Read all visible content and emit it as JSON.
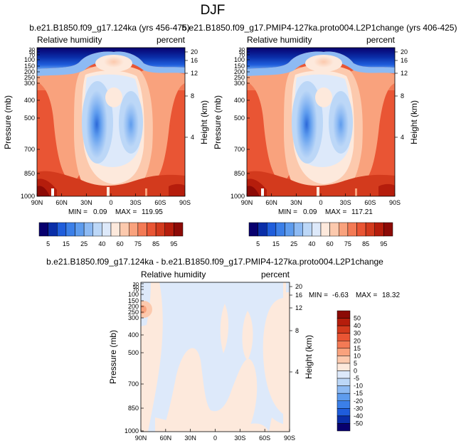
{
  "title": "DJF",
  "chart_data": [
    {
      "type": "heatmap",
      "title": "b.e21.B1850.f09_g17.124ka (yrs 456-475)",
      "left_label": "Relative humidity",
      "right_label": "percent",
      "ylabel": "Pressure (mb)",
      "ylabel_right": "Height (km)",
      "xlabel": "",
      "x_ticks": [
        "90N",
        "60N",
        "30N",
        "0",
        "30S",
        "60S",
        "90S"
      ],
      "y_ticks": [
        "30",
        "50",
        "70",
        "100",
        "150",
        "200",
        "250",
        "300",
        "400",
        "500",
        "700",
        "850",
        "1000"
      ],
      "height_ticks": [
        "20",
        "16",
        "12",
        "8",
        "4"
      ],
      "ylim": [
        1000,
        30
      ],
      "min_label": "MIN =",
      "min_value": "0.09",
      "max_label": "MAX =",
      "max_value": "119.95"
    },
    {
      "type": "heatmap",
      "title": "b.e21.B1850.f09_g17.PMIP4-127ka.proto004.L2P1change (yrs 406-425)",
      "left_label": "Relative humidity",
      "right_label": "percent",
      "ylabel": "Pressure (mb)",
      "ylabel_right": "Height (km)",
      "xlabel": "",
      "x_ticks": [
        "90N",
        "60N",
        "30N",
        "0",
        "30S",
        "60S",
        "90S"
      ],
      "y_ticks": [
        "30",
        "50",
        "70",
        "100",
        "150",
        "200",
        "250",
        "300",
        "400",
        "500",
        "700",
        "850",
        "1000"
      ],
      "height_ticks": [
        "20",
        "16",
        "12",
        "8",
        "4"
      ],
      "ylim": [
        1000,
        30
      ],
      "min_label": "MIN =",
      "min_value": "0.09",
      "max_label": "MAX =",
      "max_value": "117.21"
    },
    {
      "type": "heatmap",
      "title": "b.e21.B1850.f09_g17.124ka - b.e21.B1850.f09_g17.PMIP4-127ka.proto004.L2P1change",
      "left_label": "Relative humidity",
      "right_label": "percent",
      "ylabel": "Pressure (mb)",
      "ylabel_right": "Height (km)",
      "xlabel": "",
      "x_ticks": [
        "90N",
        "60N",
        "30N",
        "0",
        "30S",
        "60S",
        "90S"
      ],
      "y_ticks": [
        "30",
        "50",
        "70",
        "100",
        "150",
        "200",
        "250",
        "300",
        "400",
        "500",
        "700",
        "850",
        "1000"
      ],
      "height_ticks": [
        "20",
        "16",
        "12",
        "8",
        "4"
      ],
      "ylim": [
        1000,
        30
      ],
      "min_label": "MIN =",
      "min_value": "-6.63",
      "max_label": "MAX =",
      "max_value": "18.32"
    }
  ],
  "colorbar_abs": {
    "labels": [
      "5",
      "15",
      "25",
      "40",
      "60",
      "75",
      "85",
      "95"
    ],
    "levels": [
      5,
      10,
      15,
      20,
      25,
      30,
      40,
      50,
      60,
      70,
      75,
      80,
      85,
      90,
      95
    ],
    "colors": [
      "#08006e",
      "#0a2ea8",
      "#1f5ddb",
      "#3b7fe8",
      "#5e9cee",
      "#8dbaf3",
      "#bcd7f7",
      "#dde9fa",
      "#fde9dc",
      "#fcc9ad",
      "#f9a27d",
      "#f37a55",
      "#e95534",
      "#d33a1d",
      "#b51d0c",
      "#8c0a06"
    ]
  },
  "colorbar_diff": {
    "labels": [
      "50",
      "40",
      "30",
      "20",
      "15",
      "10",
      "5",
      "0",
      "-5",
      "-10",
      "-15",
      "-20",
      "-30",
      "-40",
      "-50"
    ],
    "colors": [
      "#8c0a06",
      "#b51d0c",
      "#d33a1d",
      "#e95534",
      "#f37a55",
      "#f9a27d",
      "#fcc9ad",
      "#fde9dc",
      "#dde9fa",
      "#bcd7f7",
      "#8dbaf3",
      "#5e9cee",
      "#3b7fe8",
      "#1f5ddb",
      "#0a2ea8",
      "#08006e"
    ]
  }
}
